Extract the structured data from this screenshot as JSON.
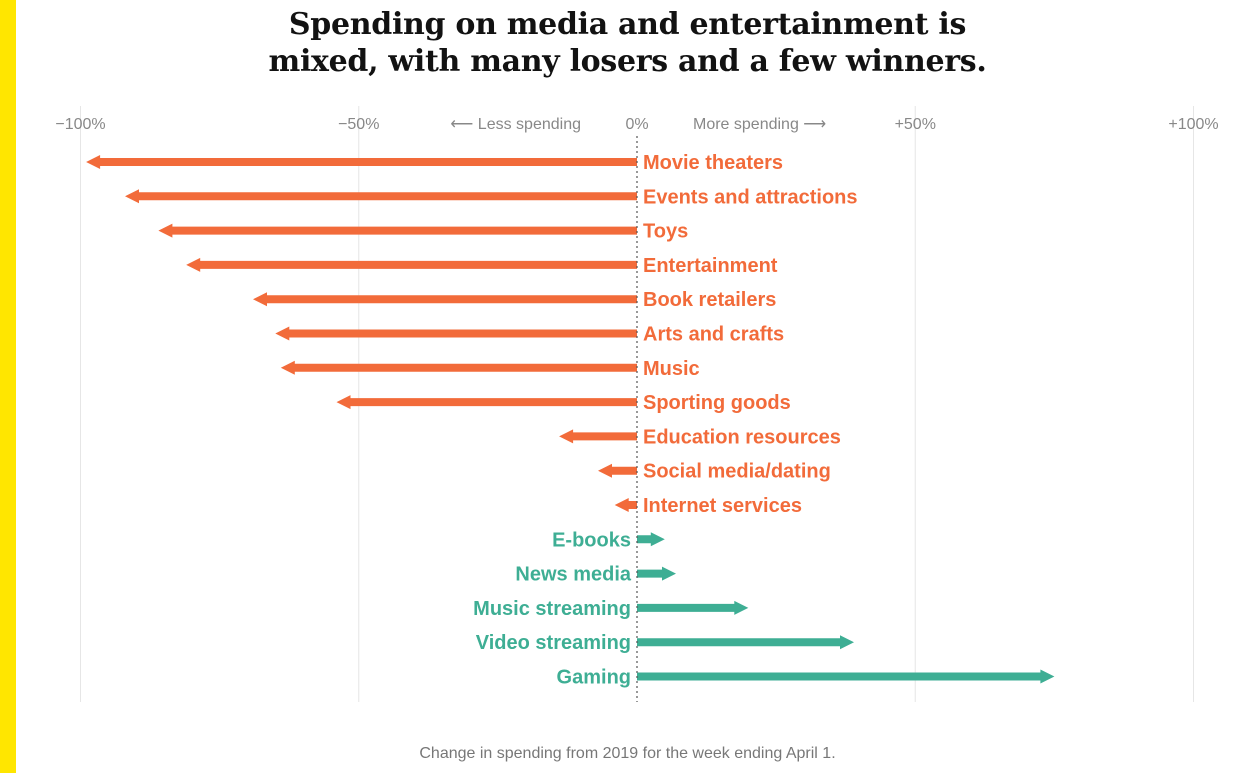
{
  "title_line1": "Spending on media and entertainment is",
  "title_line2": "mixed, with many losers and a few winners.",
  "caption": "Change in spending from 2019 for the week ending April 1.",
  "colors": {
    "accent_stripe": "#ffe600",
    "decrease": "#f26b3a",
    "increase": "#3eae94",
    "grid": "#e6e6e6",
    "tick_text": "#888888"
  },
  "chart_data": {
    "type": "bar",
    "orientation": "horizontal",
    "style": "arrows",
    "title": "Spending on media and entertainment is mixed, with many losers and a few winners.",
    "xlabel": "Change in spending from 2019 for the week ending April 1.",
    "xlim": [
      -100,
      100
    ],
    "grid": true,
    "x_ticks": [
      {
        "value": -100,
        "label": "−100%"
      },
      {
        "value": -50,
        "label": "−50%"
      },
      {
        "value": 0,
        "label": "0%"
      },
      {
        "value": 50,
        "label": "+50%"
      },
      {
        "value": 100,
        "label": "+100%"
      }
    ],
    "direction_labels": {
      "less": "⟵ Less spending",
      "more": "More spending ⟶"
    },
    "categories": [
      "Movie theaters",
      "Events and attractions",
      "Toys",
      "Entertainment",
      "Book retailers",
      "Arts and crafts",
      "Music",
      "Sporting goods",
      "Education resources",
      "Social media/dating",
      "Internet services",
      "E-books",
      "News media",
      "Music streaming",
      "Video streaming",
      "Gaming"
    ],
    "values": [
      -99,
      -92,
      -86,
      -81,
      -69,
      -65,
      -64,
      -54,
      -14,
      -7,
      -4,
      5,
      7,
      20,
      39,
      75
    ]
  }
}
